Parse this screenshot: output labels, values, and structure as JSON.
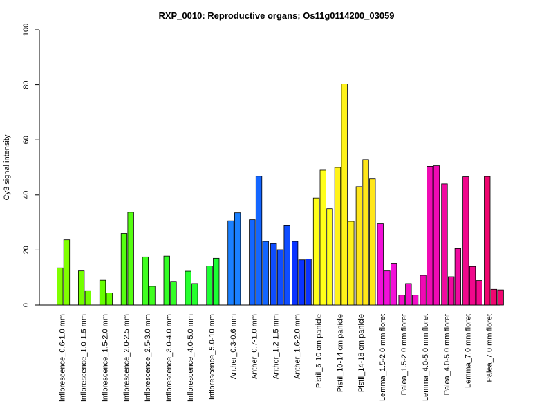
{
  "chart_data": {
    "type": "bar",
    "title": "RXP_0010: Reproductive organs; Os11g0114200_03059",
    "ylabel": "Cy3 signal intensity",
    "xlabel": "",
    "ylim": [
      0,
      100
    ],
    "yticks": [
      0,
      20,
      40,
      60,
      80,
      100
    ],
    "groups": [
      {
        "label": "Inflorescence_0.6-1.0 mm",
        "color": "#80ff00",
        "values": [
          13.5,
          23.7
        ]
      },
      {
        "label": "Inflorescence_1.0-1.5 mm",
        "color": "#73ff00",
        "values": [
          12.4,
          5.2
        ]
      },
      {
        "label": "Inflorescence_1.5-2.0 mm",
        "color": "#66ff00",
        "values": [
          9.0,
          4.4
        ]
      },
      {
        "label": "Inflorescence_2.0-2.5 mm",
        "color": "#55ff11",
        "values": [
          26.0,
          33.7
        ]
      },
      {
        "label": "Inflorescence_2.5-3.0 mm",
        "color": "#40ff20",
        "values": [
          17.5,
          6.8
        ]
      },
      {
        "label": "Inflorescence_3.0-4.0 mm",
        "color": "#33ff26",
        "values": [
          17.8,
          8.6
        ]
      },
      {
        "label": "Inflorescence_4.0-5.0 mm",
        "color": "#26ff2e",
        "values": [
          12.3,
          7.8
        ]
      },
      {
        "label": "Inflorescence_5.0-10 mm",
        "color": "#1aff33",
        "values": [
          14.2,
          17.0
        ]
      },
      {
        "label": "Anther_0.3-0.6 mm",
        "color": "#1a80ff",
        "values": [
          30.6,
          33.5
        ]
      },
      {
        "label": "Anther_0.7-1.0 mm",
        "color": "#1466ff",
        "values": [
          31.0,
          46.8,
          23.1
        ]
      },
      {
        "label": "Anther_1.2-1.5 mm",
        "color": "#0f4dff",
        "values": [
          22.3,
          20.1,
          28.8
        ]
      },
      {
        "label": "Anther_1.6-2.0 mm",
        "color": "#0a33ff",
        "values": [
          23.1,
          16.4,
          16.7
        ]
      },
      {
        "label": "Pistil_5-10 cm panicle",
        "color": "#ffff1a",
        "values": [
          38.9,
          49.0,
          35.0
        ]
      },
      {
        "label": "Pistil_10-14 cm panicle",
        "color": "#fff21a",
        "values": [
          50.0,
          80.3,
          30.4
        ]
      },
      {
        "label": "Pistil_14-18 cm panicle",
        "color": "#ffe61a",
        "values": [
          43.0,
          52.8,
          45.8
        ]
      },
      {
        "label": "Lemma_1.5-2.0 mm floret",
        "color": "#f20fd9",
        "values": [
          29.5,
          12.4,
          15.2
        ]
      },
      {
        "label": "Palea_1.5-2.0 mm floret",
        "color": "#f20dc8",
        "values": [
          3.6,
          7.8,
          3.6
        ]
      },
      {
        "label": "Lemma_4.0-5.0 mm floret",
        "color": "#f00ab4",
        "values": [
          10.8,
          50.4,
          50.6
        ]
      },
      {
        "label": "Palea_4.0-5.0 mm floret",
        "color": "#f00aa0",
        "values": [
          44.0,
          10.3,
          20.5
        ]
      },
      {
        "label": "Lemma_7.0 mm floret",
        "color": "#f0088c",
        "values": [
          46.6,
          14.0,
          8.9
        ]
      },
      {
        "label": "Palea_7.0 mm floret",
        "color": "#f00670",
        "values": [
          46.7,
          5.7,
          5.5
        ]
      }
    ]
  }
}
